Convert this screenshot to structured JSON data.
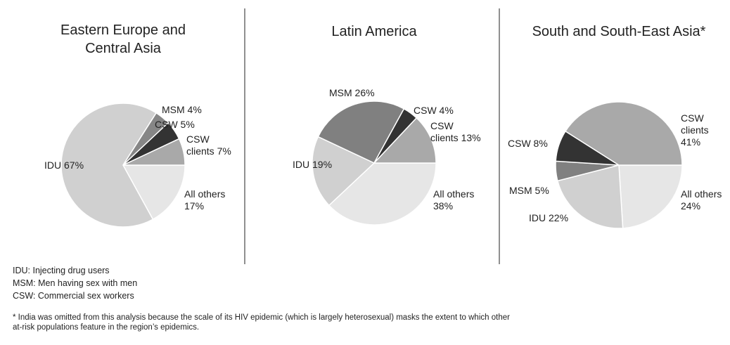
{
  "chart_data": [
    {
      "type": "pie",
      "title": "Eastern Europe and\nCentral Asia",
      "values": [
        17,
        67,
        4,
        5,
        7
      ],
      "value_labels": [
        "All others\n17%",
        "IDU 67%",
        "MSM 4%",
        "CSW 5%",
        "CSW\nclients 7%"
      ],
      "colors": [
        "#e6e6e6",
        "#d0d0d0",
        "#868686",
        "#333333",
        "#a9a9a9"
      ]
    },
    {
      "type": "pie",
      "title": "Latin America",
      "values": [
        38,
        19,
        26,
        4,
        13
      ],
      "value_labels": [
        "All others\n38%",
        "IDU 19%",
        "MSM 26%",
        "CSW 4%",
        "CSW\nclients 13%"
      ],
      "colors": [
        "#e6e6e6",
        "#d0d0d0",
        "#808080",
        "#333333",
        "#a9a9a9"
      ]
    },
    {
      "type": "pie",
      "title": "South and South-East Asia*",
      "values": [
        24,
        22,
        5,
        8,
        41
      ],
      "value_labels": [
        "All others\n24%",
        "IDU 22%",
        "MSM 5%",
        "CSW 8%",
        "CSW clients\n41%"
      ],
      "colors": [
        "#e6e6e6",
        "#d0d0d0",
        "#808080",
        "#333333",
        "#a9a9a9"
      ]
    }
  ],
  "definitions": [
    "IDU: Injecting drug users",
    "MSM: Men having sex with men",
    "CSW: Commercial sex workers"
  ],
  "footnote": "* India was omitted from this analysis because the scale of its HIV epidemic (which is largely heterosexual) masks the extent to which other\nat-risk populations feature in the region’s epidemics."
}
